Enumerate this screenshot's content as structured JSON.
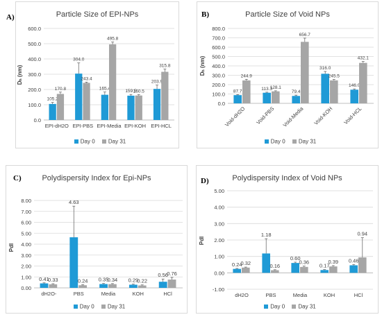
{
  "colors": {
    "day0": "#1f9ad6",
    "day31": "#a6a6a6",
    "grid": "#d9d9d9",
    "axis_text": "#404040",
    "error": "#595959"
  },
  "chart_data": [
    {
      "panel": "A)",
      "type": "bar",
      "title": "Particle Size of EPI-NPs",
      "ylabel": "Dₕ (nm)",
      "ylim": [
        0,
        600
      ],
      "yticks": [
        "0.0",
        "100.0",
        "200.0",
        "300.0",
        "400.0",
        "500.0",
        "600.0"
      ],
      "categories": [
        "EPI-dH2O",
        "EPI-PBS",
        "EPI-Media",
        "EPI-KOH",
        "EPI-HCL"
      ],
      "series": [
        {
          "name": "Day 0",
          "values": [
            105.2,
            304.0,
            165.4,
            159.5,
            203.9
          ],
          "labels": [
            "105.2",
            "304.0",
            "165.4",
            "159.5",
            "203.9"
          ],
          "errors": [
            10,
            70,
            18,
            8,
            25
          ]
        },
        {
          "name": "Day 31",
          "values": [
            170.8,
            243.4,
            495.8,
            160.5,
            315.8
          ],
          "labels": [
            "170.8",
            "243.4",
            "495.8",
            "160.5",
            "315.8"
          ],
          "errors": [
            12,
            5,
            15,
            6,
            18
          ]
        }
      ],
      "legend": "bottom",
      "grid": true
    },
    {
      "panel": "B)",
      "type": "bar",
      "title": "Particle Size of Void NPs",
      "ylabel": "Dₕ (nm)",
      "ylim": [
        0,
        800
      ],
      "yticks": [
        "0.0",
        "100.0",
        "200.0",
        "300.0",
        "400.0",
        "500.0",
        "600.0",
        "700.0",
        "800.0"
      ],
      "categories": [
        "Void-dH2O",
        "Void-PBS",
        "Void-Media",
        "Void-KOH",
        "Void-HCL"
      ],
      "series": [
        {
          "name": "Day 0",
          "values": [
            87.7,
            113.3,
            79.4,
            316.0,
            146.0
          ],
          "labels": [
            "87.7",
            "113.3",
            "79.4",
            "316.0",
            "146.0"
          ],
          "errors": [
            6,
            6,
            8,
            25,
            8
          ]
        },
        {
          "name": "Day 31",
          "values": [
            244.9,
            128.1,
            656.7,
            245.5,
            432.1
          ],
          "labels": [
            "244.9",
            "128.1",
            "656.7",
            "245.5",
            "432.1"
          ],
          "errors": [
            12,
            6,
            40,
            10,
            15
          ]
        }
      ],
      "legend": "bottom",
      "grid": true
    },
    {
      "panel": "C)",
      "type": "bar",
      "title": "Polydispersity Index for Epi-NPs",
      "ylabel": "PdI",
      "ylim": [
        0,
        8
      ],
      "yticks": [
        "0.00",
        "1.00",
        "2.00",
        "3.00",
        "4.00",
        "5.00",
        "6.00",
        "7.00",
        "8.00"
      ],
      "categories": [
        "dH2O-",
        "PBS",
        "Media",
        "KOH",
        "HCl"
      ],
      "series": [
        {
          "name": "Day 0",
          "values": [
            0.41,
            4.63,
            0.35,
            0.29,
            0.56
          ],
          "labels": [
            "0.41",
            "4.63",
            "0.35",
            "0.29",
            "0.56"
          ],
          "errors": [
            0.05,
            2.85,
            0.05,
            0.05,
            0.25
          ]
        },
        {
          "name": "Day 31",
          "values": [
            0.33,
            0.24,
            0.34,
            0.22,
            0.76
          ],
          "labels": [
            "0.33",
            "0.24",
            "0.34",
            "0.22",
            "0.76"
          ],
          "errors": [
            0.05,
            0.05,
            0.05,
            0.05,
            0.2
          ]
        }
      ],
      "legend": "bottom",
      "grid": true
    },
    {
      "panel": "D)",
      "type": "bar",
      "title": "Polydispersity Index of Void NPs",
      "ylabel": "PdI",
      "ylim": [
        -1,
        5
      ],
      "yticks": [
        "-1.00",
        "0.00",
        "1.00",
        "2.00",
        "3.00",
        "4.00",
        "5.00"
      ],
      "categories": [
        "dH2O",
        "PBS",
        "Media",
        "KOH",
        "HCl"
      ],
      "series": [
        {
          "name": "Day 0",
          "values": [
            0.24,
            1.18,
            0.6,
            0.17,
            0.46
          ],
          "labels": [
            "0.24",
            "1.18",
            "0.60",
            "0.17",
            "0.46"
          ],
          "errors": [
            0.03,
            0.9,
            0.05,
            0.03,
            0.05
          ]
        },
        {
          "name": "Day 31",
          "values": [
            0.32,
            0.16,
            0.36,
            0.39,
            0.94
          ],
          "labels": [
            "0.32",
            "0.16",
            "0.36",
            "0.39",
            "0.94"
          ],
          "errors": [
            0.03,
            0.03,
            0.05,
            0.05,
            1.2
          ]
        }
      ],
      "legend": "bottom",
      "grid": true
    }
  ]
}
